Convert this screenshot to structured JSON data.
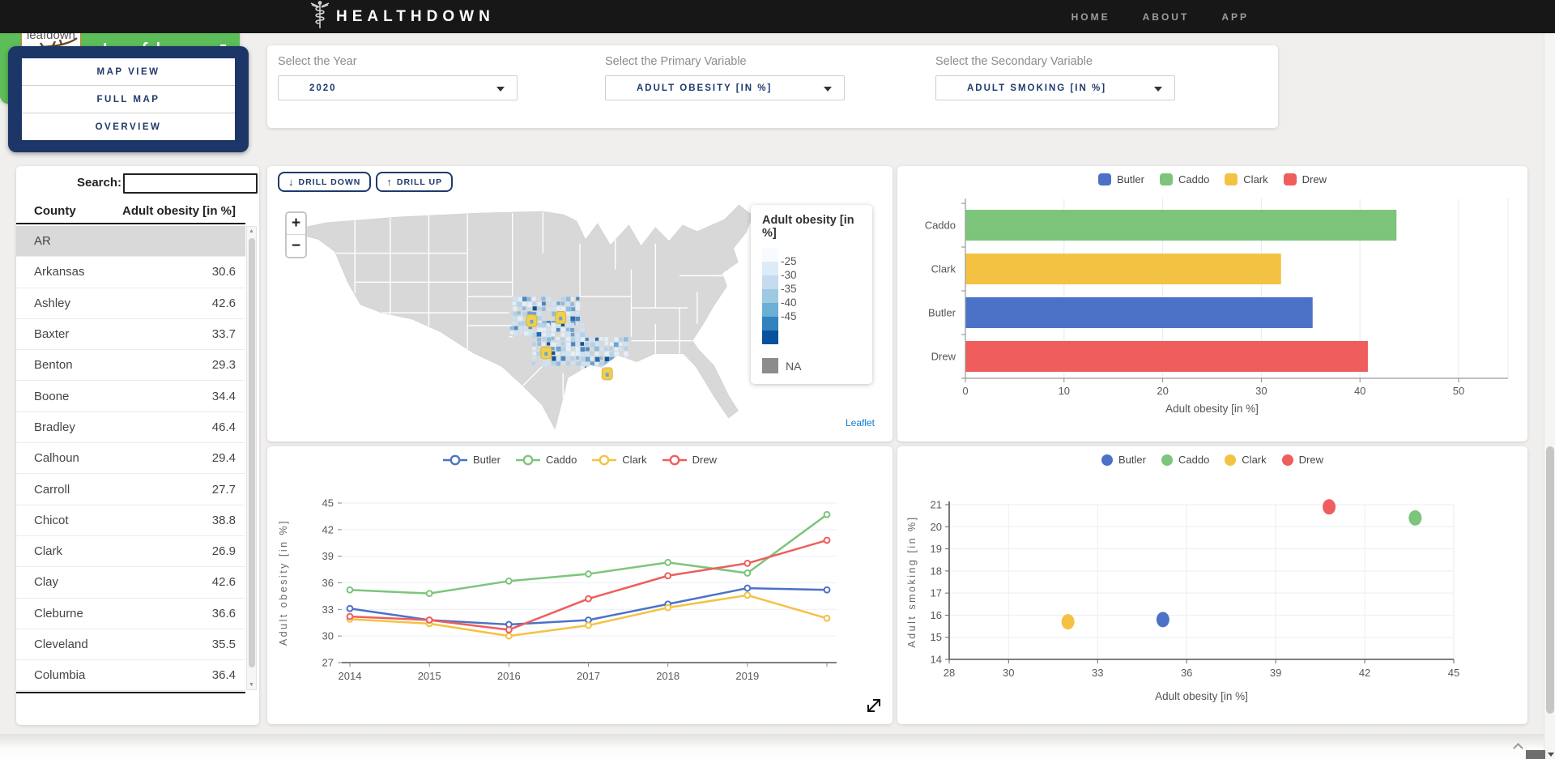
{
  "navbar": {
    "brand": "HEALTHDOWN",
    "brand_icon": "caduceus-icon",
    "links": [
      "HOME",
      "ABOUT",
      "APP"
    ]
  },
  "side_nav": {
    "items": [
      "MAP VIEW",
      "FULL MAP",
      "OVERVIEW"
    ]
  },
  "selectors": [
    {
      "label": "Select the Year",
      "value": "2020"
    },
    {
      "label": "Select the Primary Variable",
      "value": "ADULT OBESITY [IN %]"
    },
    {
      "label": "Select the Secondary Variable",
      "value": "ADULT SMOKING [IN %]"
    }
  ],
  "leafdown_card": {
    "title": "Leafdown",
    "logo_text": "leafdown",
    "bg_color": "#5cbd59",
    "icon": "external-link-icon"
  },
  "county_panel": {
    "search_label": "Search:",
    "search_value": "",
    "columns": [
      "County",
      "Adult obesity [in %]"
    ],
    "group_row": "AR",
    "rows": [
      [
        "Arkansas",
        "30.6"
      ],
      [
        "Ashley",
        "42.6"
      ],
      [
        "Baxter",
        "33.7"
      ],
      [
        "Benton",
        "29.3"
      ],
      [
        "Boone",
        "34.4"
      ],
      [
        "Bradley",
        "46.4"
      ],
      [
        "Calhoun",
        "29.4"
      ],
      [
        "Carroll",
        "27.7"
      ],
      [
        "Chicot",
        "38.8"
      ],
      [
        "Clark",
        "26.9"
      ],
      [
        "Clay",
        "42.6"
      ],
      [
        "Cleburne",
        "36.6"
      ],
      [
        "Cleveland",
        "35.5"
      ],
      [
        "Columbia",
        "36.4"
      ]
    ]
  },
  "map_panel": {
    "drill_down": "DRILL DOWN",
    "drill_up": "DRILL UP",
    "drill_down_arrow": "↓",
    "drill_up_arrow": "↑",
    "zoom_in": "+",
    "zoom_out": "−",
    "attribution": "Leaflet",
    "legend": {
      "title": "Adult obesity [in %]",
      "ticks": [
        "25",
        "30",
        "35",
        "40",
        "45"
      ],
      "na": "NA",
      "colors": [
        "#f7fbff",
        "#deebf7",
        "#c6dbef",
        "#9ecae1",
        "#6baed6",
        "#3182bd",
        "#08519c"
      ],
      "na_color": "#8c8c8c"
    },
    "land_color": "#d8d8d8",
    "marker_color": "#f0cf4e"
  },
  "series_colors": {
    "Butler": "#4b72c7",
    "Caddo": "#7cc57b",
    "Clark": "#f4c243",
    "Drew": "#ef5d5d"
  },
  "chart_data": [
    {
      "type": "bar",
      "orientation": "horizontal",
      "categories": [
        "Caddo",
        "Clark",
        "Butler",
        "Drew"
      ],
      "values": [
        43.7,
        32.0,
        35.2,
        40.8
      ],
      "xlabel": "Adult obesity [in %]",
      "xlim": [
        0,
        55
      ],
      "xticks": [
        0,
        10,
        20,
        30,
        40,
        50
      ],
      "legend": [
        "Butler",
        "Caddo",
        "Clark",
        "Drew"
      ],
      "legend_position": "top",
      "grid": "vertical"
    },
    {
      "type": "line",
      "x": [
        2014,
        2015,
        2016,
        2017,
        2018,
        2019,
        2020
      ],
      "xtick_labels": [
        "2014",
        "2015",
        "2016",
        "2017",
        "2018",
        "2019"
      ],
      "series": [
        {
          "name": "Butler",
          "values": [
            33.1,
            31.8,
            31.3,
            31.8,
            33.6,
            35.4,
            35.2
          ]
        },
        {
          "name": "Caddo",
          "values": [
            35.2,
            34.8,
            36.2,
            37.0,
            38.3,
            37.1,
            43.7
          ]
        },
        {
          "name": "Clark",
          "values": [
            31.9,
            31.4,
            30.0,
            31.2,
            33.2,
            34.6,
            32.0
          ]
        },
        {
          "name": "Drew",
          "values": [
            32.2,
            31.8,
            30.7,
            34.2,
            36.8,
            38.2,
            40.8
          ]
        }
      ],
      "ylabel": "Adult obesity [in %]",
      "ylim": [
        27,
        45
      ],
      "yticks": [
        27,
        30,
        33,
        36,
        39,
        42,
        45
      ],
      "legend": [
        "Butler",
        "Caddo",
        "Clark",
        "Drew"
      ],
      "legend_position": "top",
      "grid": "horizontal"
    },
    {
      "type": "scatter",
      "points": [
        {
          "name": "Butler",
          "x": 35.2,
          "y": 15.8
        },
        {
          "name": "Caddo",
          "x": 43.7,
          "y": 20.4
        },
        {
          "name": "Clark",
          "x": 32.0,
          "y": 15.7
        },
        {
          "name": "Drew",
          "x": 40.8,
          "y": 20.9
        }
      ],
      "xlabel": "Adult obesity [in %]",
      "ylabel": "Adult smoking [in %]",
      "xlim": [
        28,
        45
      ],
      "xticks": [
        28,
        30,
        33,
        36,
        39,
        42,
        45
      ],
      "ylim": [
        14,
        21
      ],
      "yticks": [
        14,
        15,
        16,
        17,
        18,
        19,
        20,
        21
      ],
      "legend": [
        "Butler",
        "Caddo",
        "Clark",
        "Drew"
      ],
      "legend_position": "top",
      "grid": "both"
    }
  ]
}
